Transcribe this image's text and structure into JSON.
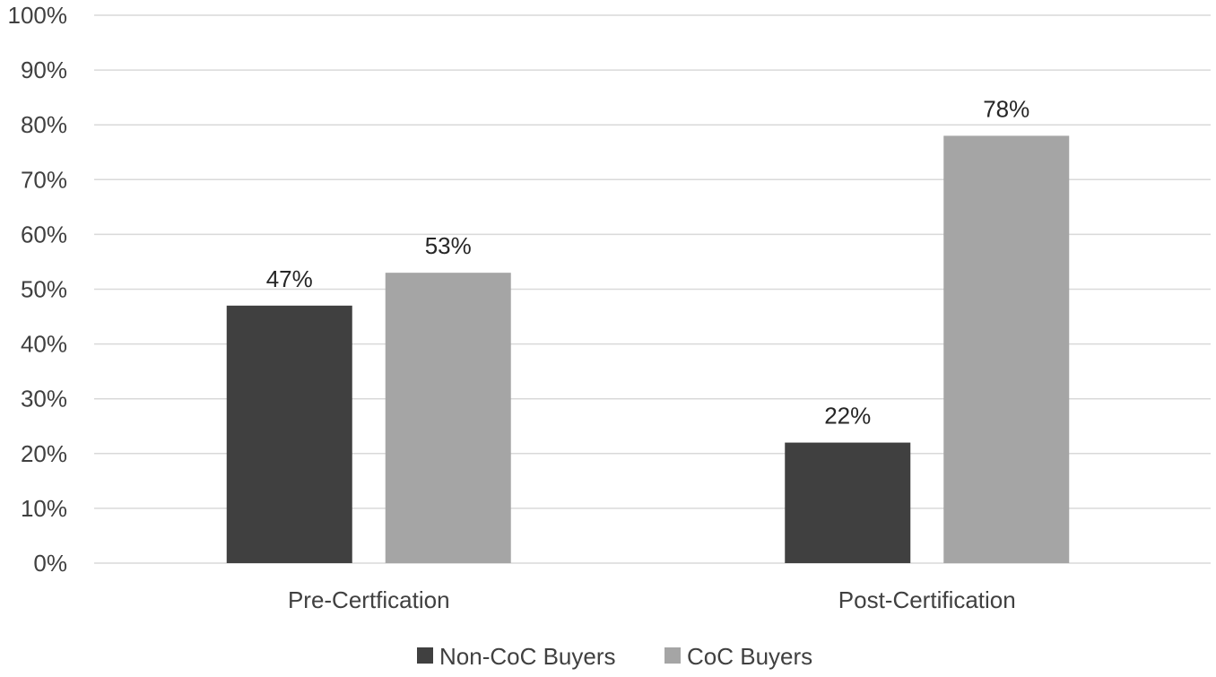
{
  "chart_data": {
    "type": "bar",
    "title": "",
    "xlabel": "",
    "ylabel": "",
    "categories": [
      "Pre-Certfication",
      "Post-Certification"
    ],
    "series": [
      {
        "name": "Non-CoC Buyers",
        "values": [
          47,
          22
        ],
        "color": "#404040"
      },
      {
        "name": "CoC Buyers",
        "values": [
          53,
          78
        ],
        "color": "#a5a5a5"
      }
    ],
    "data_labels": [
      [
        "47%",
        "22%"
      ],
      [
        "53%",
        "78%"
      ]
    ],
    "ylim": [
      0,
      100
    ],
    "yticks": [
      "0%",
      "10%",
      "20%",
      "30%",
      "40%",
      "50%",
      "60%",
      "70%",
      "80%",
      "90%",
      "100%"
    ],
    "grid": true,
    "legend_position": "bottom",
    "gridline_color": "#d9d9d9"
  }
}
